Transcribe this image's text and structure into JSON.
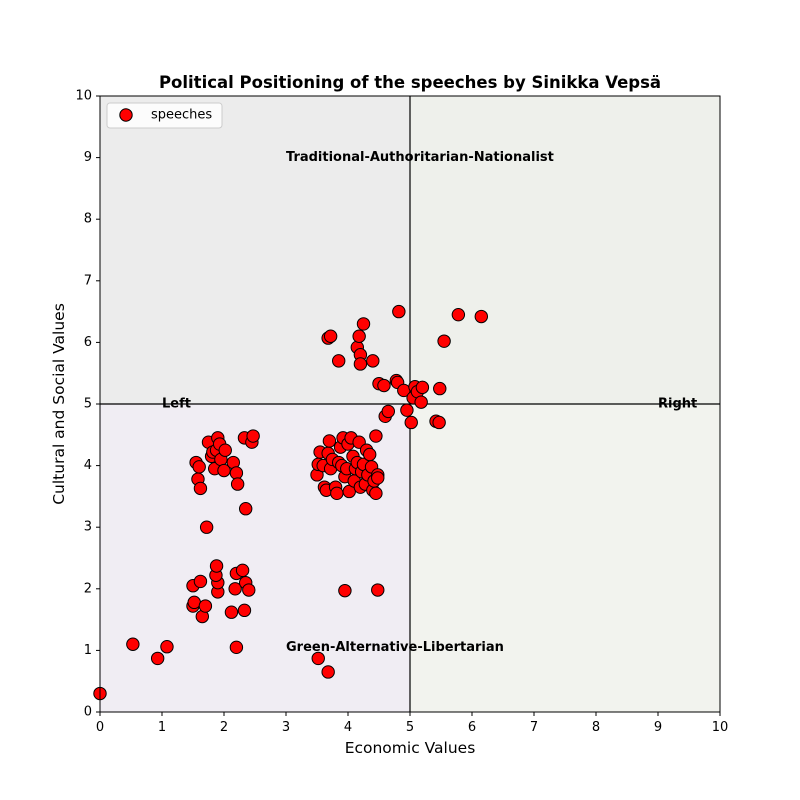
{
  "chart_data": {
    "type": "scatter",
    "title": "Political Positioning of the speeches by Sinikka Vepsä",
    "xlabel": "Economic Values",
    "ylabel": "Cultural and Social Values",
    "xlim": [
      0,
      10
    ],
    "ylim": [
      0,
      10
    ],
    "xticks": [
      "0",
      "1",
      "2",
      "3",
      "4",
      "5",
      "6",
      "7",
      "8",
      "9",
      "10"
    ],
    "yticks": [
      "0",
      "1",
      "2",
      "3",
      "4",
      "5",
      "6",
      "7",
      "8",
      "9",
      "10"
    ],
    "grid": false,
    "legend_position": "top-left",
    "center_lines": {
      "x": 5,
      "y": 5
    },
    "quadrant_colors": {
      "top_left": "#ececec",
      "top_right": "#eef0eb",
      "bottom_left": "#f0edf3",
      "bottom_right": "#f2f3ee"
    },
    "quadrant_labels": [
      {
        "text": "Traditional-Authoritarian-Nationalist",
        "x": 3.0,
        "y": 9.0,
        "anchor": "start"
      },
      {
        "text": "Green-Alternative-Libertarian",
        "x": 3.0,
        "y": 1.05,
        "anchor": "start"
      },
      {
        "text": "Left",
        "x": 1.0,
        "y": 5.0,
        "anchor": "start"
      },
      {
        "text": "Right",
        "x": 9.0,
        "y": 5.0,
        "anchor": "start"
      }
    ],
    "series": [
      {
        "name": "speeches",
        "color": "#ff0000",
        "edge_color": "#000000",
        "points": [
          [
            0.0,
            0.3
          ],
          [
            0.53,
            1.1
          ],
          [
            0.93,
            0.87
          ],
          [
            1.08,
            1.06
          ],
          [
            1.5,
            1.72
          ],
          [
            1.52,
            1.78
          ],
          [
            1.5,
            2.05
          ],
          [
            1.62,
            2.12
          ],
          [
            1.65,
            1.55
          ],
          [
            1.7,
            1.72
          ],
          [
            1.9,
            1.95
          ],
          [
            1.9,
            2.1
          ],
          [
            1.87,
            2.22
          ],
          [
            1.88,
            2.37
          ],
          [
            2.12,
            1.62
          ],
          [
            2.18,
            2.0
          ],
          [
            2.2,
            2.25
          ],
          [
            2.2,
            1.05
          ],
          [
            2.3,
            2.3
          ],
          [
            2.35,
            2.1
          ],
          [
            2.4,
            1.98
          ],
          [
            2.33,
            1.65
          ],
          [
            1.55,
            4.05
          ],
          [
            1.6,
            3.98
          ],
          [
            1.58,
            3.78
          ],
          [
            1.62,
            3.63
          ],
          [
            1.72,
            3.0
          ],
          [
            1.75,
            4.38
          ],
          [
            1.8,
            4.15
          ],
          [
            1.82,
            4.22
          ],
          [
            1.85,
            3.95
          ],
          [
            1.88,
            4.25
          ],
          [
            1.9,
            4.45
          ],
          [
            1.93,
            4.35
          ],
          [
            1.95,
            4.1
          ],
          [
            2.0,
            3.92
          ],
          [
            2.02,
            4.25
          ],
          [
            2.15,
            4.05
          ],
          [
            2.2,
            3.88
          ],
          [
            2.22,
            3.7
          ],
          [
            2.33,
            4.45
          ],
          [
            2.35,
            3.3
          ],
          [
            2.45,
            4.38
          ],
          [
            2.47,
            4.48
          ],
          [
            3.5,
            3.85
          ],
          [
            3.52,
            4.02
          ],
          [
            3.55,
            4.22
          ],
          [
            3.6,
            4.0
          ],
          [
            3.62,
            3.65
          ],
          [
            3.65,
            3.6
          ],
          [
            3.68,
            4.2
          ],
          [
            3.7,
            4.4
          ],
          [
            3.72,
            3.95
          ],
          [
            3.75,
            4.1
          ],
          [
            3.8,
            3.65
          ],
          [
            3.82,
            3.55
          ],
          [
            3.85,
            4.05
          ],
          [
            3.88,
            4.3
          ],
          [
            3.9,
            4.0
          ],
          [
            3.92,
            4.45
          ],
          [
            3.95,
            3.82
          ],
          [
            3.98,
            3.95
          ],
          [
            4.0,
            4.35
          ],
          [
            4.02,
            3.58
          ],
          [
            4.05,
            4.45
          ],
          [
            4.08,
            4.15
          ],
          [
            4.1,
            3.75
          ],
          [
            4.12,
            3.95
          ],
          [
            4.15,
            4.05
          ],
          [
            4.18,
            4.38
          ],
          [
            4.2,
            3.65
          ],
          [
            4.22,
            3.9
          ],
          [
            4.25,
            4.02
          ],
          [
            4.28,
            3.7
          ],
          [
            4.3,
            4.25
          ],
          [
            4.32,
            3.85
          ],
          [
            4.35,
            4.18
          ],
          [
            4.38,
            3.98
          ],
          [
            4.4,
            3.6
          ],
          [
            4.42,
            3.75
          ],
          [
            4.45,
            3.55
          ],
          [
            4.45,
            4.48
          ],
          [
            4.48,
            3.85
          ],
          [
            4.48,
            3.8
          ],
          [
            3.52,
            0.87
          ],
          [
            3.68,
            0.65
          ],
          [
            3.95,
            1.97
          ],
          [
            4.48,
            1.98
          ],
          [
            3.68,
            6.07
          ],
          [
            3.72,
            6.1
          ],
          [
            3.85,
            5.7
          ],
          [
            4.15,
            5.92
          ],
          [
            4.18,
            6.1
          ],
          [
            4.2,
            5.8
          ],
          [
            4.2,
            5.65
          ],
          [
            4.25,
            6.3
          ],
          [
            4.4,
            5.7
          ],
          [
            4.5,
            5.33
          ],
          [
            4.58,
            5.3
          ],
          [
            4.6,
            4.8
          ],
          [
            4.65,
            4.88
          ],
          [
            4.78,
            5.38
          ],
          [
            4.8,
            5.35
          ],
          [
            4.82,
            6.5
          ],
          [
            4.9,
            5.22
          ],
          [
            4.95,
            4.9
          ],
          [
            5.02,
            4.7
          ],
          [
            5.05,
            5.1
          ],
          [
            5.08,
            5.28
          ],
          [
            5.12,
            5.2
          ],
          [
            5.18,
            5.03
          ],
          [
            5.2,
            5.27
          ],
          [
            5.42,
            4.72
          ],
          [
            5.47,
            4.7
          ],
          [
            5.48,
            5.25
          ],
          [
            5.55,
            6.02
          ],
          [
            5.78,
            6.45
          ],
          [
            6.15,
            6.42
          ]
        ]
      }
    ]
  }
}
